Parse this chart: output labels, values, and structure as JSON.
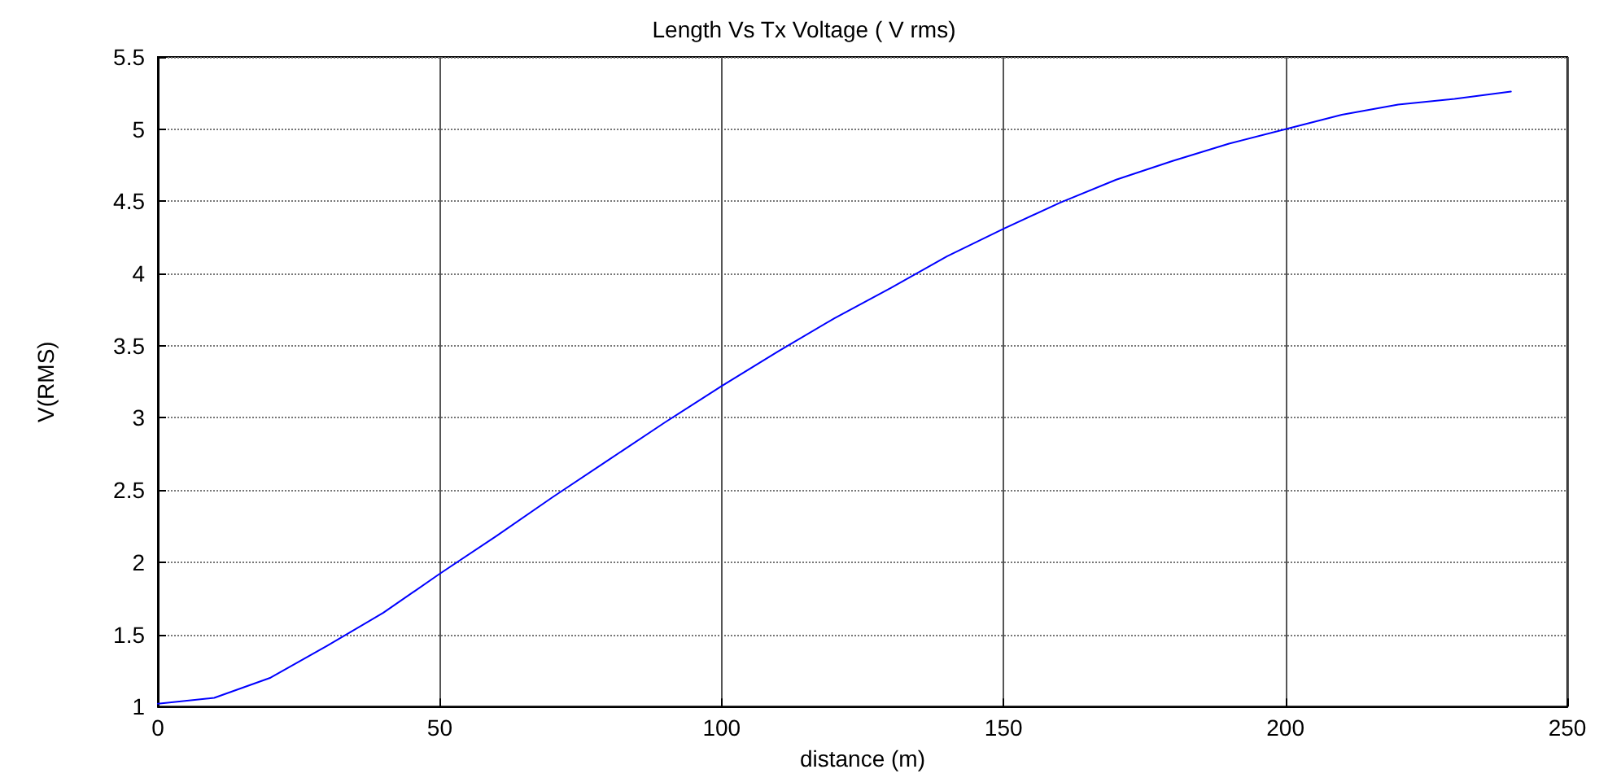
{
  "chart_data": {
    "type": "line",
    "title": "Length Vs Tx Voltage ( V rms)",
    "xlabel": "distance (m)",
    "ylabel": "V(RMS)",
    "x": [
      0,
      10,
      20,
      30,
      40,
      50,
      60,
      70,
      80,
      90,
      100,
      110,
      120,
      130,
      140,
      150,
      160,
      170,
      180,
      190,
      200,
      210,
      220,
      230,
      240
    ],
    "series": [
      {
        "color": "#0000ff",
        "values": [
          1.02,
          1.06,
          1.2,
          1.42,
          1.65,
          1.92,
          2.18,
          2.45,
          2.71,
          2.97,
          3.22,
          3.46,
          3.69,
          3.9,
          4.12,
          4.31,
          4.49,
          4.65,
          4.78,
          4.9,
          5.0,
          5.1,
          5.17,
          5.21,
          5.26
        ]
      }
    ],
    "xlim": [
      0,
      250
    ],
    "xticks": [
      0,
      50,
      100,
      150,
      200,
      250
    ],
    "ylim": [
      1,
      5.5
    ],
    "yticks": [
      1,
      1.5,
      2,
      2.5,
      3,
      3.5,
      4,
      4.5,
      5,
      5.5
    ],
    "grid": true,
    "marker": "none",
    "line_style": "solid"
  }
}
